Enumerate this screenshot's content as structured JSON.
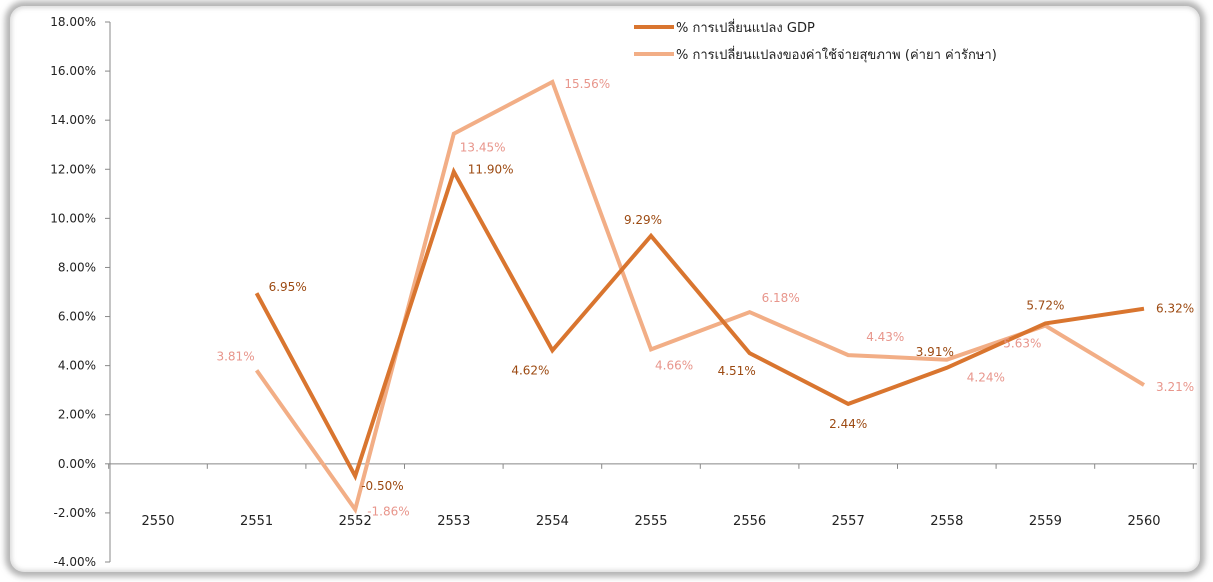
{
  "chart_data": {
    "type": "line",
    "categories": [
      "2550",
      "2551",
      "2552",
      "2553",
      "2554",
      "2555",
      "2556",
      "2557",
      "2558",
      "2559",
      "2560"
    ],
    "ylim": [
      -4,
      18
    ],
    "ytick_step": 2,
    "ytick_labels": [
      "-4.00%",
      "-2.00%",
      "0.00%",
      "2.00%",
      "4.00%",
      "6.00%",
      "8.00%",
      "10.00%",
      "12.00%",
      "14.00%",
      "16.00%",
      "18.00%"
    ],
    "grid": false,
    "legend_position": "top-right",
    "series": [
      {
        "name": "% การเปลี่ยนแปลง GDP",
        "color": "#D9752F",
        "values": [
          null,
          6.95,
          -0.5,
          11.9,
          4.62,
          9.29,
          4.51,
          2.44,
          3.91,
          5.72,
          6.32
        ],
        "labels": [
          "",
          "6.95%",
          "-0.50%",
          "11.90%",
          "4.62%",
          "9.29%",
          "4.51%",
          "2.44%",
          "3.91%",
          "5.72%",
          "6.32%"
        ],
        "label_color": "#9C4A12"
      },
      {
        "name": "% การเปลี่ยนแปลงของค่าใช้จ่ายสุขภาพ (ค่ายา ค่ารักษา)",
        "color": "#F2AE86",
        "values": [
          null,
          3.81,
          -1.86,
          13.45,
          15.56,
          4.66,
          6.18,
          4.43,
          4.24,
          5.63,
          3.21
        ],
        "labels": [
          "",
          "3.81%",
          "-1.86%",
          "13.45%",
          "15.56%",
          "4.66%",
          "6.18%",
          "4.43%",
          "4.24%",
          "5.63%",
          "3.21%"
        ],
        "label_color": "#E8968C"
      }
    ]
  }
}
